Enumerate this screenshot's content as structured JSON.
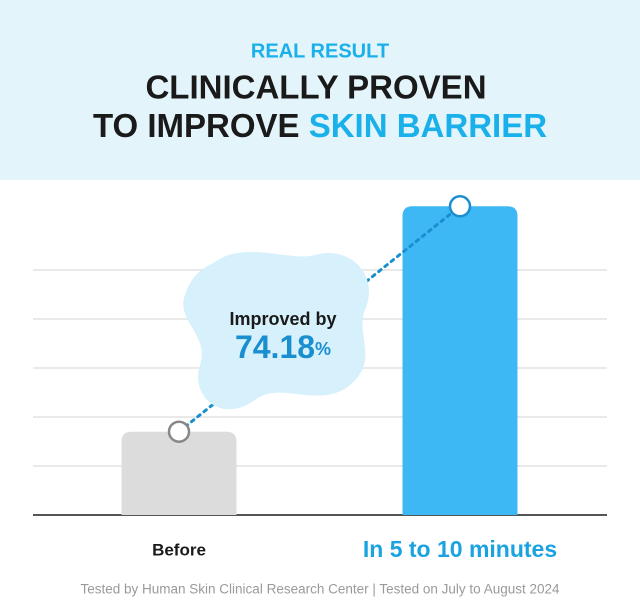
{
  "chart_data": {
    "type": "bar",
    "header": "REAL RESULT",
    "title_line1": "CLINICALLY PROVEN",
    "title_line2": "TO IMPROVE ",
    "title_highlight": "SKIN BARRIER",
    "annotation": "Improved by",
    "annotation_value": "74.18",
    "annotation_unit": "%",
    "categories": [
      "Before",
      "In 5 to 10 minutes"
    ],
    "values": [
      1.7,
      6.3
    ],
    "colors": [
      "#dcdcdc",
      "#3db8f5"
    ],
    "label_colors": [
      "#1a1a1a",
      "#1aa3e0"
    ],
    "ylim": [
      0,
      7
    ],
    "yticks": [
      0,
      1,
      2,
      3,
      4,
      5
    ],
    "grid": true,
    "footnote": "Tested by Human Skin Clinical Research Center | Tested on July to August 2024"
  }
}
